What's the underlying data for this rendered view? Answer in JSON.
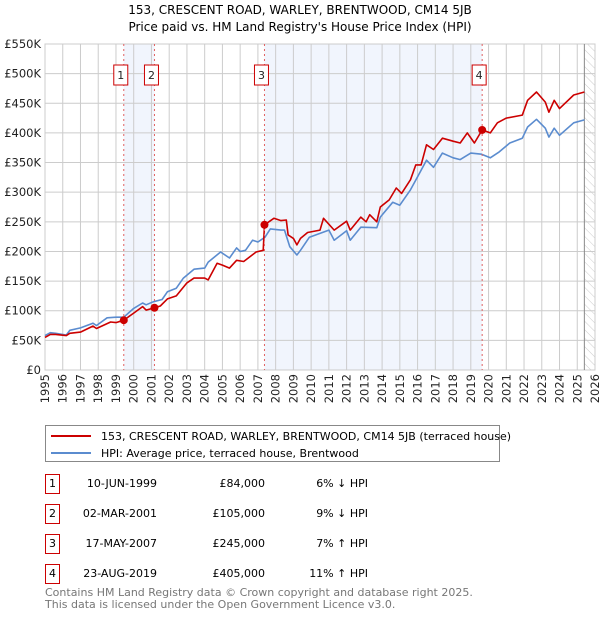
{
  "chart_data": {
    "type": "line",
    "title": "153, CRESCENT ROAD, WARLEY, BRENTWOOD, CM14 5JB",
    "subtitle": "Price paid vs. HM Land Registry's House Price Index (HPI)",
    "xlim": [
      1995,
      2026
    ],
    "ylim": [
      0,
      550000
    ],
    "x_ticks": [
      "1995",
      "1996",
      "1997",
      "1998",
      "1999",
      "2000",
      "2001",
      "2002",
      "2003",
      "2004",
      "2005",
      "2006",
      "2007",
      "2008",
      "2009",
      "2010",
      "2011",
      "2012",
      "2013",
      "2014",
      "2015",
      "2016",
      "2017",
      "2018",
      "2019",
      "2020",
      "2021",
      "2022",
      "2023",
      "2024",
      "2025",
      "2026"
    ],
    "y_ticks": [
      {
        "value": 0,
        "label": "£0"
      },
      {
        "value": 50000,
        "label": "£50K"
      },
      {
        "value": 100000,
        "label": "£100K"
      },
      {
        "value": 150000,
        "label": "£150K"
      },
      {
        "value": 200000,
        "label": "£200K"
      },
      {
        "value": 250000,
        "label": "£250K"
      },
      {
        "value": 300000,
        "label": "£300K"
      },
      {
        "value": 350000,
        "label": "£350K"
      },
      {
        "value": 400000,
        "label": "£400K"
      },
      {
        "value": 450000,
        "label": "£450K"
      },
      {
        "value": 500000,
        "label": "£500K"
      },
      {
        "value": 550000,
        "label": "£550K"
      }
    ],
    "grid": true,
    "shaded_ranges": [
      [
        1999.44,
        2001.17
      ],
      [
        2007.37,
        2019.64
      ]
    ],
    "forecast_hatch_from": 2025.4,
    "series": [
      {
        "name": "153, CRESCENT ROAD, WARLEY, BRENTWOOD, CM14 5JB (terraced house)",
        "color": "#cc0000",
        "x": [
          1995.0,
          1995.3,
          1995.6,
          1996.2,
          1996.4,
          1997.0,
          1997.7,
          1997.9,
          1998.7,
          1999.0,
          1999.44,
          2000.0,
          2000.5,
          2000.7,
          2001.17,
          2001.5,
          2001.9,
          2002.4,
          2003.0,
          2003.4,
          2004.0,
          2004.2,
          2004.7,
          2005.0,
          2005.4,
          2005.8,
          2006.2,
          2006.9,
          2007.3,
          2007.37,
          2007.9,
          2008.3,
          2008.6,
          2008.7,
          2009.0,
          2009.2,
          2009.4,
          2009.8,
          2010.5,
          2010.7,
          2011.3,
          2012.0,
          2012.2,
          2012.8,
          2013.1,
          2013.3,
          2013.7,
          2013.9,
          2014.4,
          2014.8,
          2015.1,
          2015.6,
          2015.9,
          2016.2,
          2016.5,
          2016.9,
          2017.4,
          2018.0,
          2018.4,
          2018.8,
          2019.2,
          2019.64,
          2020.1,
          2020.5,
          2021.0,
          2021.9,
          2022.2,
          2022.7,
          2023.2,
          2023.4,
          2023.7,
          2024.0,
          2024.8,
          2025.4
        ],
        "y": [
          55000,
          60000,
          60000,
          58000,
          62000,
          64000,
          74000,
          70000,
          81000,
          80000,
          84000,
          96000,
          107000,
          101000,
          105000,
          108000,
          120000,
          125000,
          147000,
          155000,
          155000,
          152000,
          180000,
          177000,
          172000,
          185000,
          183000,
          199000,
          202000,
          245000,
          256000,
          252000,
          253000,
          228000,
          222000,
          211000,
          222000,
          232000,
          236000,
          256000,
          236000,
          251000,
          236000,
          258000,
          250000,
          262000,
          250000,
          275000,
          287000,
          307000,
          298000,
          321000,
          346000,
          346000,
          380000,
          372000,
          391000,
          386000,
          383000,
          400000,
          383000,
          405000,
          400000,
          417000,
          425000,
          430000,
          455000,
          469000,
          452000,
          435000,
          455000,
          441000,
          464000,
          469000
        ]
      },
      {
        "name": "HPI: Average price, terraced house, Brentwood",
        "color": "#5b8ccf",
        "x": [
          1995.0,
          1995.3,
          1995.6,
          1996.2,
          1996.4,
          1997.0,
          1997.7,
          1997.9,
          1998.5,
          1999.0,
          1999.44,
          2000.0,
          2000.5,
          2000.7,
          2001.1,
          2001.6,
          2001.9,
          2002.4,
          2002.8,
          2003.4,
          2004.0,
          2004.2,
          2004.9,
          2005.4,
          2005.8,
          2006.0,
          2006.3,
          2006.7,
          2007.0,
          2007.4,
          2007.7,
          2008.3,
          2008.5,
          2008.8,
          2009.2,
          2009.4,
          2009.9,
          2011.0,
          2011.3,
          2012.0,
          2012.2,
          2012.8,
          2013.7,
          2013.9,
          2014.6,
          2015.0,
          2015.6,
          2016.0,
          2016.5,
          2016.9,
          2017.4,
          2018.0,
          2018.4,
          2019.0,
          2019.6,
          2020.1,
          2020.6,
          2021.2,
          2021.9,
          2022.2,
          2022.7,
          2023.2,
          2023.4,
          2023.7,
          2024.0,
          2024.8,
          2025.4
        ],
        "y": [
          58000,
          63000,
          62000,
          59000,
          67000,
          71000,
          79000,
          75000,
          88000,
          89000,
          89000,
          104000,
          113000,
          110000,
          115000,
          119000,
          132000,
          138000,
          155000,
          170000,
          172000,
          182000,
          199000,
          189000,
          206000,
          200000,
          202000,
          219000,
          216000,
          224000,
          238000,
          236000,
          236000,
          208000,
          194000,
          202000,
          224000,
          236000,
          219000,
          235000,
          219000,
          241000,
          240000,
          258000,
          283000,
          278000,
          304000,
          326000,
          354000,
          342000,
          366000,
          358000,
          355000,
          366000,
          364000,
          358000,
          368000,
          383000,
          391000,
          410000,
          423000,
          408000,
          393000,
          408000,
          396000,
          417000,
          422000
        ]
      }
    ],
    "sales": [
      {
        "label": "1",
        "x": 1999.44,
        "y": 84000
      },
      {
        "label": "2",
        "x": 2001.17,
        "y": 105000
      },
      {
        "label": "3",
        "x": 2007.37,
        "y": 245000
      },
      {
        "label": "4",
        "x": 2019.64,
        "y": 405000
      }
    ]
  },
  "title_line1": "153, CRESCENT ROAD, WARLEY, BRENTWOOD, CM14 5JB",
  "title_line2": "Price paid vs. HM Land Registry's House Price Index (HPI)",
  "legend": {
    "property": "153, CRESCENT ROAD, WARLEY, BRENTWOOD, CM14 5JB (terraced house)",
    "hpi": "HPI: Average price, terraced house, Brentwood"
  },
  "transactions": [
    {
      "num": "1",
      "date": "10-JUN-1999",
      "price": "£84,000",
      "hpi": "6% ↓ HPI"
    },
    {
      "num": "2",
      "date": "02-MAR-2001",
      "price": "£105,000",
      "hpi": "9% ↓ HPI"
    },
    {
      "num": "3",
      "date": "17-MAY-2007",
      "price": "£245,000",
      "hpi": "7% ↑ HPI"
    },
    {
      "num": "4",
      "date": "23-AUG-2019",
      "price": "£405,000",
      "hpi": "11% ↑ HPI"
    }
  ],
  "footer": {
    "line1": "Contains HM Land Registry data © Crown copyright and database right 2025.",
    "line2": "This data is licensed under the Open Government Licence v3.0."
  }
}
